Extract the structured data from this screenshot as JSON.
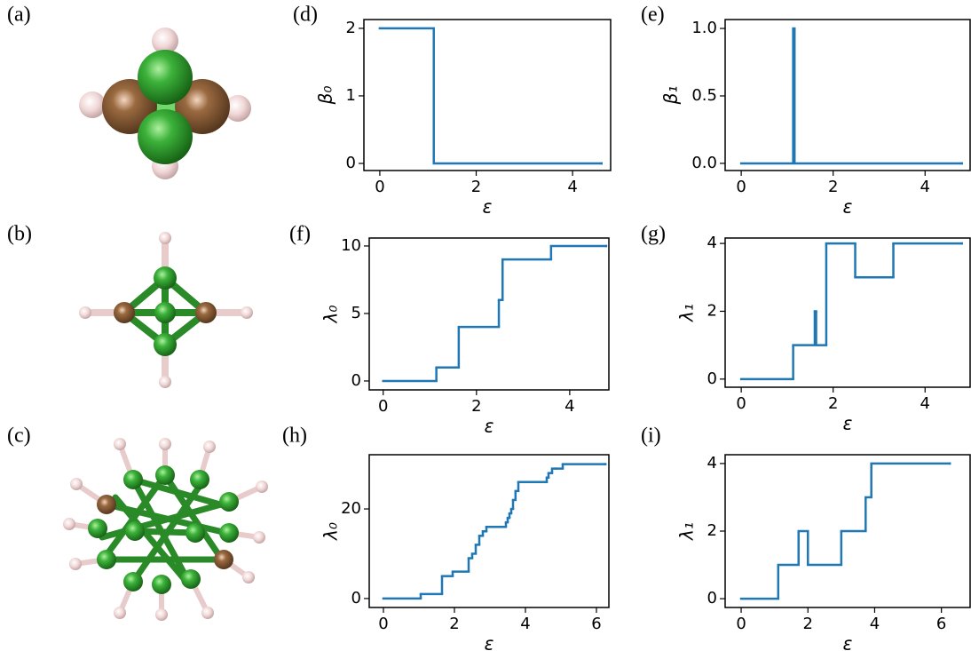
{
  "molecule_labels": [
    "(a)",
    "(b)",
    "(c)"
  ],
  "chart_data": [
    {
      "type": "line",
      "drawstyle": "steps-post",
      "panel_label": "(d)",
      "xlabel": "ε",
      "ylabel": "β₀",
      "x": [
        0,
        1.12,
        4.6
      ],
      "series": [
        {
          "name": "β₀",
          "color": "#1f77b4",
          "values": [
            2,
            0,
            0
          ]
        }
      ],
      "xlim": [
        -0.33,
        4.79
      ],
      "ylim": [
        -0.105,
        2.13
      ],
      "xticks": [
        0,
        2,
        4
      ],
      "yticks": [
        0,
        1,
        2
      ]
    },
    {
      "type": "line",
      "drawstyle": "steps-post",
      "panel_label": "(e)",
      "xlabel": "ε",
      "ylabel": "β₁",
      "x": [
        0,
        1.13,
        1.16,
        4.8
      ],
      "series": [
        {
          "name": "β₁",
          "color": "#1f77b4",
          "values": [
            0,
            1,
            0,
            0
          ]
        }
      ],
      "xlim": [
        -0.35,
        4.98
      ],
      "ylim": [
        -0.053,
        1.066
      ],
      "xticks": [
        0,
        2,
        4
      ],
      "yticks": [
        {
          "value": 0,
          "label": "0.0"
        },
        0.5,
        {
          "value": 1,
          "label": "1.0"
        }
      ]
    },
    {
      "type": "line",
      "drawstyle": "steps-post",
      "panel_label": "(f)",
      "xlabel": "ε",
      "ylabel": "λ₀",
      "x": [
        0,
        1.14,
        1.62,
        2.48,
        2.56,
        3.6,
        4.78
      ],
      "series": [
        {
          "name": "λ₀",
          "color": "#1f77b4",
          "values": [
            0,
            1,
            4,
            6,
            9,
            10,
            10
          ]
        }
      ],
      "xlim": [
        -0.3,
        4.84
      ],
      "ylim": [
        -0.66,
        10.59
      ],
      "xticks": [
        0,
        2,
        4
      ],
      "yticks": [
        0,
        5,
        10
      ]
    },
    {
      "type": "line",
      "drawstyle": "steps-post",
      "panel_label": "(g)",
      "xlabel": "ε",
      "ylabel": "λ₁",
      "x": [
        0,
        1.13,
        1.6,
        1.63,
        1.85,
        2.48,
        3.31,
        4.8
      ],
      "series": [
        {
          "name": "λ₁",
          "color": "#1f77b4",
          "values": [
            0,
            1,
            2,
            1,
            4,
            3,
            4,
            4
          ]
        }
      ],
      "xlim": [
        -0.35,
        4.98
      ],
      "ylim": [
        -0.24,
        4.16
      ],
      "xticks": [
        0,
        2,
        4
      ],
      "yticks": [
        0,
        2,
        4
      ]
    },
    {
      "type": "line",
      "drawstyle": "steps-post",
      "panel_label": "(h)",
      "xlabel": "ε",
      "ylabel": "λ₀",
      "x": [
        0,
        1.05,
        1.65,
        1.95,
        2.4,
        2.5,
        2.6,
        2.7,
        2.8,
        2.9,
        3.45,
        3.5,
        3.55,
        3.6,
        3.65,
        3.72,
        3.8,
        4.6,
        4.65,
        4.75,
        4.85,
        5.05,
        6.25
      ],
      "series": [
        {
          "name": "λ₀",
          "color": "#1f77b4",
          "values": [
            0,
            1,
            5,
            6,
            9,
            10,
            12,
            14,
            15,
            16,
            17,
            18,
            19,
            20,
            22,
            24,
            26,
            27,
            28,
            29,
            29,
            30,
            30
          ]
        }
      ],
      "xlim": [
        -0.4,
        6.35
      ],
      "ylim": [
        -2,
        32.1
      ],
      "xticks": [
        0,
        2,
        4,
        6
      ],
      "yticks": [
        0,
        20
      ]
    },
    {
      "type": "line",
      "drawstyle": "steps-post",
      "panel_label": "(i)",
      "xlabel": "ε",
      "ylabel": "λ₁",
      "x": [
        0,
        1.11,
        1.72,
        2.0,
        3.0,
        3.73,
        3.9,
        6.25
      ],
      "series": [
        {
          "name": "λ₁",
          "color": "#1f77b4",
          "values": [
            0,
            1,
            2,
            1,
            2,
            3,
            4,
            4
          ]
        }
      ],
      "xlim": [
        -0.48,
        6.86
      ],
      "ylim": [
        -0.26,
        4.26
      ],
      "xticks": [
        0,
        2,
        4,
        6
      ],
      "yticks": [
        0,
        2,
        4
      ]
    }
  ]
}
